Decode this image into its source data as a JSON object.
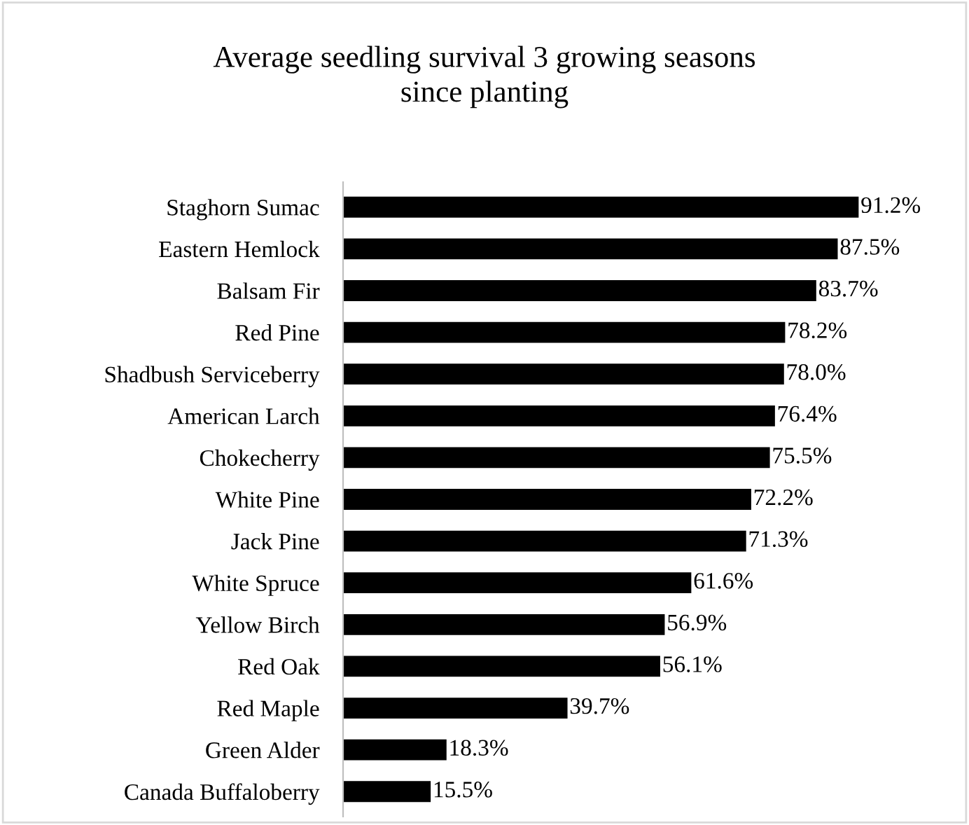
{
  "chart_data": {
    "type": "bar",
    "orientation": "horizontal",
    "title": "Average seedling survival 3 growing seasons\nsince planting",
    "categories": [
      "Staghorn Sumac",
      "Eastern Hemlock",
      "Balsam Fir",
      "Red Pine",
      "Shadbush Serviceberry",
      "American Larch",
      "Chokecherry",
      "White Pine",
      "Jack Pine",
      "White Spruce",
      "Yellow Birch",
      "Red Oak",
      "Red Maple",
      "Green Alder",
      "Canada Buffaloberry"
    ],
    "values": [
      91.2,
      87.5,
      83.7,
      78.2,
      78.0,
      76.4,
      75.5,
      72.2,
      71.3,
      61.6,
      56.9,
      56.1,
      39.7,
      18.3,
      15.5
    ],
    "value_labels": [
      "91.2%",
      "87.5%",
      "83.7%",
      "78.2%",
      "78.0%",
      "76.4%",
      "75.5%",
      "72.2%",
      "71.3%",
      "61.6%",
      "56.9%",
      "56.1%",
      "39.7%",
      "18.3%",
      "15.5%"
    ],
    "color": "#000000",
    "grid": false,
    "legend": false
  }
}
